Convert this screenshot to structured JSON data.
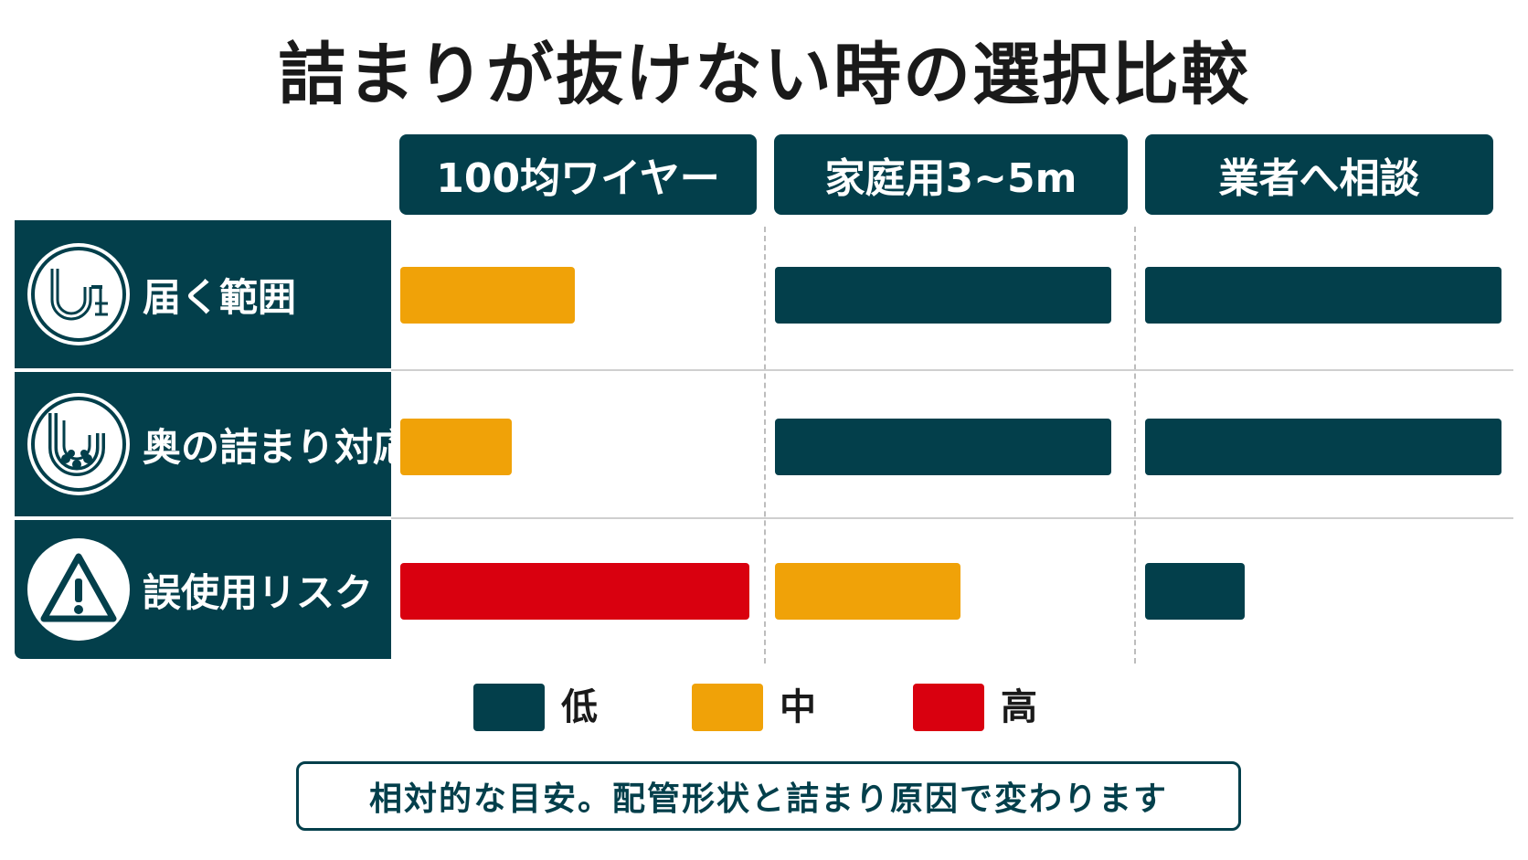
{
  "title": "詰まりが抜けない時の選択比較",
  "colors": {
    "low": "#033f4b",
    "mid": "#f0a208",
    "high": "#d9000f",
    "header": "#033f4b"
  },
  "chart_data": {
    "type": "bar",
    "title": "詰まりが抜けない時の選択比較",
    "columns": [
      "100均ワイヤー",
      "家庭用3~5m",
      "業者へ相談"
    ],
    "rows": [
      {
        "label": "届く範囲",
        "icon": "pipe-trap-wire-icon",
        "values": [
          0.5,
          0.98,
          1.0
        ],
        "levels": [
          "mid",
          "low",
          "low"
        ]
      },
      {
        "label": "奥の詰まり対応",
        "icon": "clogged-pipe-icon",
        "values": [
          0.32,
          0.98,
          1.0
        ],
        "levels": [
          "mid",
          "low",
          "low"
        ]
      },
      {
        "label": "誤使用リスク",
        "icon": "warning-icon",
        "values": [
          1.0,
          0.54,
          0.28
        ],
        "levels": [
          "high",
          "mid",
          "low"
        ]
      }
    ],
    "legend": [
      {
        "key": "low",
        "label": "低"
      },
      {
        "key": "mid",
        "label": "中"
      },
      {
        "key": "high",
        "label": "高"
      }
    ]
  },
  "note": "相対的な目安。配管形状と詰まり原因で変わります"
}
